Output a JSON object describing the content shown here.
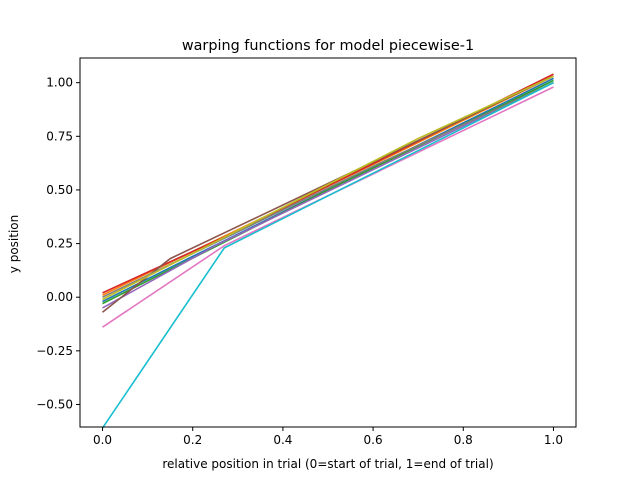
{
  "chart_data": {
    "type": "line",
    "title": "warping functions for model  piecewise-1",
    "xlabel": "relative position in trial (0=start of trial, 1=end of trial)",
    "ylabel": "y position",
    "xlim": [
      -0.05,
      1.05
    ],
    "ylim": [
      -0.605,
      1.115
    ],
    "xticks": [
      0.0,
      0.2,
      0.4,
      0.6,
      0.8,
      1.0
    ],
    "xtick_labels": [
      "0.0",
      "0.2",
      "0.4",
      "0.6",
      "0.8",
      "1.0"
    ],
    "yticks": [
      -0.5,
      -0.25,
      0.0,
      0.25,
      0.5,
      0.75,
      1.0
    ],
    "ytick_labels": [
      "−0.50",
      "−0.25",
      "0.00",
      "0.25",
      "0.50",
      "0.75",
      "1.00"
    ],
    "grid": false,
    "legend": "none",
    "series": [
      {
        "color": "#1f77b4",
        "x": [
          0,
          0.2,
          1.0
        ],
        "y": [
          -0.02,
          0.19,
          1.02
        ]
      },
      {
        "color": "#ff7f0e",
        "x": [
          0,
          0.65,
          1.0
        ],
        "y": [
          0.01,
          0.67,
          1.03
        ]
      },
      {
        "color": "#2ca02c",
        "x": [
          0,
          0.5,
          1.0
        ],
        "y": [
          -0.03,
          0.5,
          1.01
        ]
      },
      {
        "color": "#d62728",
        "x": [
          0,
          0.3,
          1.0
        ],
        "y": [
          0.02,
          0.31,
          1.04
        ]
      },
      {
        "color": "#9467bd",
        "x": [
          0,
          0.25,
          1.0
        ],
        "y": [
          -0.05,
          0.24,
          1.0
        ]
      },
      {
        "color": "#8c564b",
        "x": [
          0,
          0.15,
          1.0
        ],
        "y": [
          -0.07,
          0.18,
          1.03
        ]
      },
      {
        "color": "#e377c2",
        "x": [
          0,
          0.27,
          1.0
        ],
        "y": [
          -0.14,
          0.24,
          0.98
        ]
      },
      {
        "color": "#7f7f7f",
        "x": [
          0,
          0.6,
          1.0
        ],
        "y": [
          0.0,
          0.61,
          1.0
        ]
      },
      {
        "color": "#bcbd22",
        "x": [
          0,
          0.7,
          1.0
        ],
        "y": [
          -0.01,
          0.74,
          1.03
        ]
      },
      {
        "color": "#17becf",
        "x": [
          0,
          0.27,
          1.0
        ],
        "y": [
          -0.61,
          0.23,
          1.0
        ]
      }
    ]
  }
}
